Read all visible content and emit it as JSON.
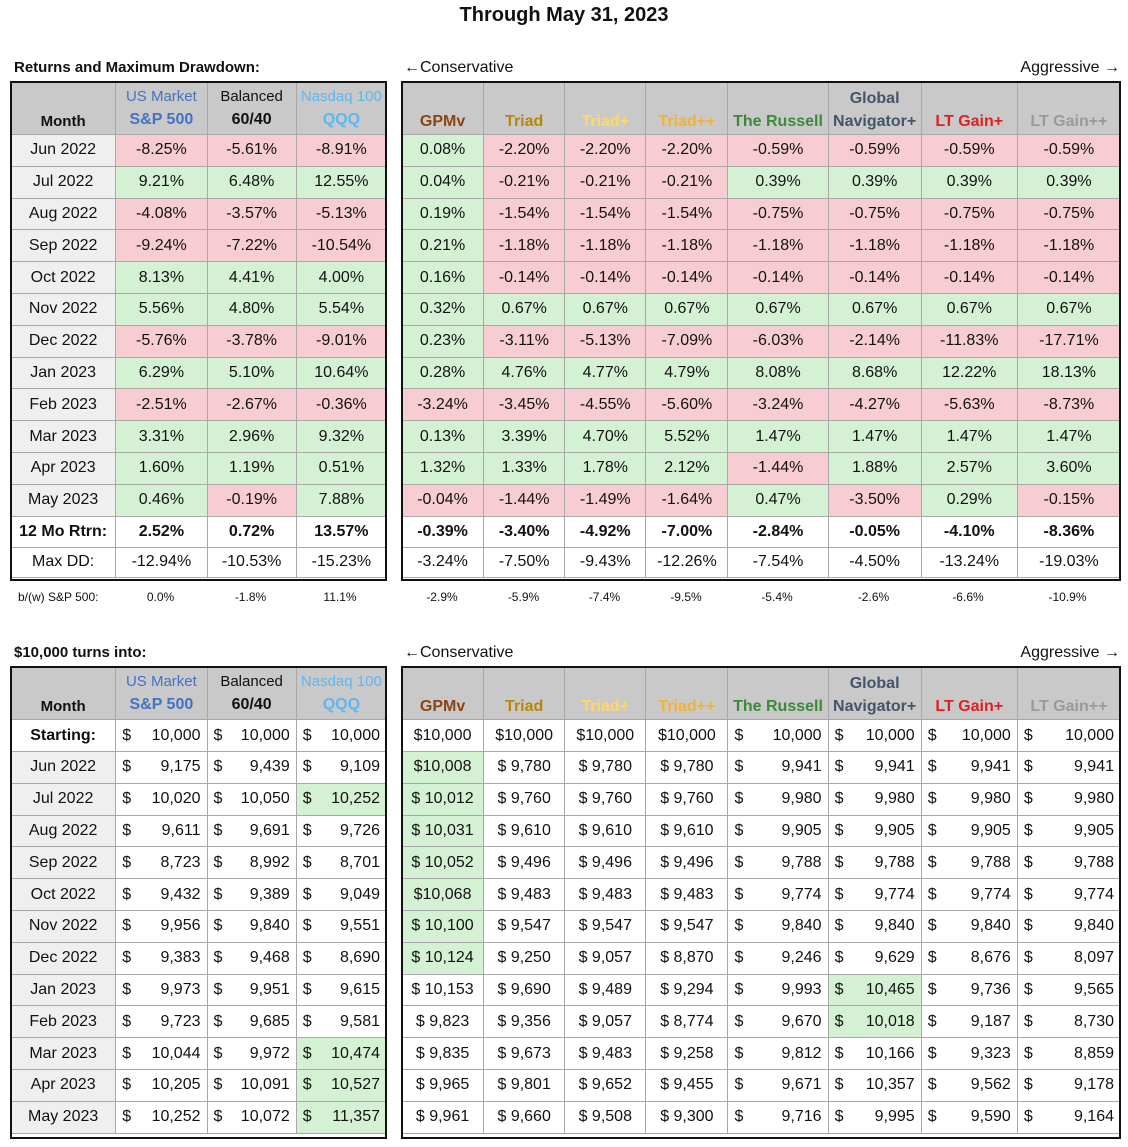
{
  "title": "Through May 31, 2023",
  "direction": {
    "left": "←Conservative",
    "right": "Aggressive →"
  },
  "section1_title": "Returns and Maximum Drawdown:",
  "section2_title": "$10,000 turns into:",
  "month_header": "Month",
  "left_headers": [
    {
      "line1": "US Market",
      "line2": "S&P 500",
      "color1": "#4472c4",
      "color2": "#4472c4"
    },
    {
      "line1": "Balanced",
      "line2": "60/40",
      "color1": "#111111",
      "color2": "#111111"
    },
    {
      "line1": "Nasdaq 100",
      "line2": "QQQ",
      "color1": "#5bb8f0",
      "color2": "#5bb8f0"
    }
  ],
  "right_headers": [
    {
      "line1": "",
      "line2": "GPMv",
      "color": "#8b4513"
    },
    {
      "line1": "",
      "line2": "Triad",
      "color": "#b8860b"
    },
    {
      "line1": "",
      "line2": "Triad+",
      "color": "#ffd966"
    },
    {
      "line1": "",
      "line2": "Triad++",
      "color": "#f2b233"
    },
    {
      "line1": "",
      "line2": "The Russell",
      "color": "#3a8a3a"
    },
    {
      "line1": "Global",
      "line2": "Navigator+",
      "color": "#44546a"
    },
    {
      "line1": "",
      "line2": "LT Gain+",
      "color": "#e02020"
    },
    {
      "line1": "",
      "line2": "LT Gain++",
      "color": "#9a9a9a"
    }
  ],
  "returns": {
    "months": [
      "Jun 2022",
      "Jul 2022",
      "Aug 2022",
      "Sep 2022",
      "Oct 2022",
      "Nov 2022",
      "Dec 2022",
      "Jan 2023",
      "Feb 2023",
      "Mar 2023",
      "Apr 2023",
      "May 2023"
    ],
    "left": [
      [
        "-8.25%",
        "-5.61%",
        "-8.91%"
      ],
      [
        "9.21%",
        "6.48%",
        "12.55%"
      ],
      [
        "-4.08%",
        "-3.57%",
        "-5.13%"
      ],
      [
        "-9.24%",
        "-7.22%",
        "-10.54%"
      ],
      [
        "8.13%",
        "4.41%",
        "4.00%"
      ],
      [
        "5.56%",
        "4.80%",
        "5.54%"
      ],
      [
        "-5.76%",
        "-3.78%",
        "-9.01%"
      ],
      [
        "6.29%",
        "5.10%",
        "10.64%"
      ],
      [
        "-2.51%",
        "-2.67%",
        "-0.36%"
      ],
      [
        "3.31%",
        "2.96%",
        "9.32%"
      ],
      [
        "1.60%",
        "1.19%",
        "0.51%"
      ],
      [
        "0.46%",
        "-0.19%",
        "7.88%"
      ]
    ],
    "right": [
      [
        "0.08%",
        "-2.20%",
        "-2.20%",
        "-2.20%",
        "-0.59%",
        "-0.59%",
        "-0.59%",
        "-0.59%"
      ],
      [
        "0.04%",
        "-0.21%",
        "-0.21%",
        "-0.21%",
        "0.39%",
        "0.39%",
        "0.39%",
        "0.39%"
      ],
      [
        "0.19%",
        "-1.54%",
        "-1.54%",
        "-1.54%",
        "-0.75%",
        "-0.75%",
        "-0.75%",
        "-0.75%"
      ],
      [
        "0.21%",
        "-1.18%",
        "-1.18%",
        "-1.18%",
        "-1.18%",
        "-1.18%",
        "-1.18%",
        "-1.18%"
      ],
      [
        "0.16%",
        "-0.14%",
        "-0.14%",
        "-0.14%",
        "-0.14%",
        "-0.14%",
        "-0.14%",
        "-0.14%"
      ],
      [
        "0.32%",
        "0.67%",
        "0.67%",
        "0.67%",
        "0.67%",
        "0.67%",
        "0.67%",
        "0.67%"
      ],
      [
        "0.23%",
        "-3.11%",
        "-5.13%",
        "-7.09%",
        "-6.03%",
        "-2.14%",
        "-11.83%",
        "-17.71%"
      ],
      [
        "0.28%",
        "4.76%",
        "4.77%",
        "4.79%",
        "8.08%",
        "8.68%",
        "12.22%",
        "18.13%"
      ],
      [
        "-3.24%",
        "-3.45%",
        "-4.55%",
        "-5.60%",
        "-3.24%",
        "-4.27%",
        "-5.63%",
        "-8.73%"
      ],
      [
        "0.13%",
        "3.39%",
        "4.70%",
        "5.52%",
        "1.47%",
        "1.47%",
        "1.47%",
        "1.47%"
      ],
      [
        "1.32%",
        "1.33%",
        "1.78%",
        "2.12%",
        "-1.44%",
        "1.88%",
        "2.57%",
        "3.60%"
      ],
      [
        "-0.04%",
        "-1.44%",
        "-1.49%",
        "-1.64%",
        "0.47%",
        "-3.50%",
        "0.29%",
        "-0.15%"
      ]
    ],
    "rtrn_label": "12 Mo Rtrn:",
    "rtrn_left": [
      "2.52%",
      "0.72%",
      "13.57%"
    ],
    "rtrn_right": [
      "-0.39%",
      "-3.40%",
      "-4.92%",
      "-7.00%",
      "-2.84%",
      "-0.05%",
      "-4.10%",
      "-8.36%"
    ],
    "dd_label": "Max DD:",
    "dd_left": [
      "-12.94%",
      "-10.53%",
      "-15.23%"
    ],
    "dd_right": [
      "-3.24%",
      "-7.50%",
      "-9.43%",
      "-12.26%",
      "-7.54%",
      "-4.50%",
      "-13.24%",
      "-19.03%"
    ],
    "bw_label": "b/(w) S&P 500:",
    "bw_left": [
      "0.0%",
      "-1.8%",
      "11.1%"
    ],
    "bw_right": [
      "-2.9%",
      "-5.9%",
      "-7.4%",
      "-9.5%",
      "-5.4%",
      "-2.6%",
      "-6.6%",
      "-10.9%"
    ]
  },
  "growth": {
    "starting_label": "Starting:",
    "currency": "$",
    "starting_left": [
      "10,000",
      "10,000",
      "10,000"
    ],
    "starting_right": [
      "$10,000",
      "$10,000",
      "$10,000",
      "$10,000",
      "10,000",
      "10,000",
      "10,000",
      "10,000"
    ],
    "months": [
      "Jun 2022",
      "Jul 2022",
      "Aug 2022",
      "Sep 2022",
      "Oct 2022",
      "Nov 2022",
      "Dec 2022",
      "Jan 2023",
      "Feb 2023",
      "Mar 2023",
      "Apr 2023",
      "May 2023"
    ],
    "left": [
      [
        "9,175",
        "9,439",
        "9,109"
      ],
      [
        "10,020",
        "10,050",
        "10,252"
      ],
      [
        "9,611",
        "9,691",
        "9,726"
      ],
      [
        "8,723",
        "8,992",
        "8,701"
      ],
      [
        "9,432",
        "9,389",
        "9,049"
      ],
      [
        "9,956",
        "9,840",
        "9,551"
      ],
      [
        "9,383",
        "9,468",
        "8,690"
      ],
      [
        "9,973",
        "9,951",
        "9,615"
      ],
      [
        "9,723",
        "9,685",
        "9,581"
      ],
      [
        "10,044",
        "9,972",
        "10,474"
      ],
      [
        "10,205",
        "10,091",
        "10,527"
      ],
      [
        "10,252",
        "10,072",
        "11,357"
      ]
    ],
    "right": [
      [
        "$10,008",
        "$ 9,780",
        "$ 9,780",
        "$ 9,780",
        "9,941",
        "9,941",
        "9,941",
        "9,941"
      ],
      [
        "$ 10,012",
        "$ 9,760",
        "$ 9,760",
        "$ 9,760",
        "9,980",
        "9,980",
        "9,980",
        "9,980"
      ],
      [
        "$ 10,031",
        "$ 9,610",
        "$ 9,610",
        "$ 9,610",
        "9,905",
        "9,905",
        "9,905",
        "9,905"
      ],
      [
        "$ 10,052",
        "$ 9,496",
        "$ 9,496",
        "$ 9,496",
        "9,788",
        "9,788",
        "9,788",
        "9,788"
      ],
      [
        "$10,068",
        "$ 9,483",
        "$ 9,483",
        "$ 9,483",
        "9,774",
        "9,774",
        "9,774",
        "9,774"
      ],
      [
        "$ 10,100",
        "$ 9,547",
        "$ 9,547",
        "$ 9,547",
        "9,840",
        "9,840",
        "9,840",
        "9,840"
      ],
      [
        "$ 10,124",
        "$ 9,250",
        "$ 9,057",
        "$ 8,870",
        "9,246",
        "9,629",
        "8,676",
        "8,097"
      ],
      [
        "$ 10,153",
        "$ 9,690",
        "$ 9,489",
        "$ 9,294",
        "9,993",
        "10,465",
        "9,736",
        "9,565"
      ],
      [
        "$ 9,823",
        "$ 9,356",
        "$ 9,057",
        "$ 8,774",
        "9,670",
        "10,018",
        "9,187",
        "8,730"
      ],
      [
        "$ 9,835",
        "$ 9,673",
        "$ 9,483",
        "$ 9,258",
        "9,812",
        "10,166",
        "9,323",
        "8,859"
      ],
      [
        "$ 9,965",
        "$ 9,801",
        "$ 9,652",
        "$ 9,455",
        "9,671",
        "10,357",
        "9,562",
        "9,178"
      ],
      [
        "$ 9,961",
        "$ 9,660",
        "$ 9,508",
        "$ 9,300",
        "9,716",
        "9,995",
        "9,590",
        "9,164"
      ]
    ],
    "highlight_left": [
      [
        1,
        2
      ],
      [
        9,
        2
      ],
      [
        10,
        2
      ],
      [
        11,
        2
      ]
    ],
    "highlight_right": [
      [
        0,
        0
      ],
      [
        1,
        0
      ],
      [
        2,
        0
      ],
      [
        3,
        0
      ],
      [
        4,
        0
      ],
      [
        5,
        0
      ],
      [
        6,
        0
      ],
      [
        7,
        5
      ],
      [
        8,
        5
      ]
    ]
  },
  "colors": {
    "positive": "#d4f1d4",
    "negative": "#f7cdd3",
    "header": "#c9c9c9"
  }
}
